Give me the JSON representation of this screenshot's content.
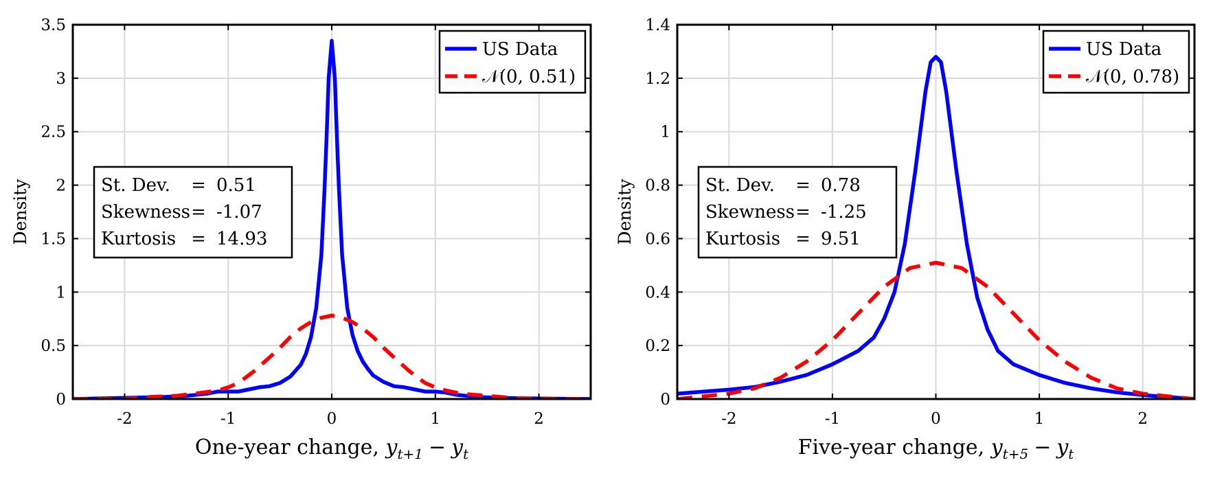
{
  "chart_data": [
    {
      "type": "line",
      "ylabel": "Density",
      "xlabel_text": "One-year change, ",
      "xlabel_math": {
        "base1": "y",
        "sub1": "t+1",
        "op": "−",
        "base2": "y",
        "sub2": "t"
      },
      "xlim": [
        -2.5,
        2.5
      ],
      "ylim": [
        0,
        3.5
      ],
      "xticks": [
        -2,
        -1,
        0,
        1,
        2
      ],
      "xtick_labels": [
        "-2",
        "-1",
        "0",
        "1",
        "2"
      ],
      "yticks": [
        0,
        0.5,
        1,
        1.5,
        2,
        2.5,
        3,
        3.5
      ],
      "ytick_labels": [
        "0",
        "0.5",
        "1",
        "1.5",
        "2",
        "2.5",
        "3",
        "3.5"
      ],
      "grid": true,
      "legend_position": "top-right",
      "stats_box": {
        "position": "middle-left",
        "lines": [
          {
            "label": "St. Dev.",
            "eq": "=",
            "value": "0.51"
          },
          {
            "label": "Skewness",
            "eq": "=",
            "value": "-1.07"
          },
          {
            "label": "Kurtosis",
            "eq": "=",
            "value": "14.93"
          }
        ]
      },
      "series": [
        {
          "name": "US Data",
          "color": "#0000ff",
          "style": "solid",
          "x": [
            -2.5,
            -2.0,
            -1.6,
            -1.4,
            -1.2,
            -1.1,
            -1.0,
            -0.9,
            -0.8,
            -0.7,
            -0.6,
            -0.5,
            -0.4,
            -0.3,
            -0.25,
            -0.2,
            -0.15,
            -0.1,
            -0.07,
            -0.05,
            -0.03,
            0.0,
            0.03,
            0.05,
            0.07,
            0.1,
            0.15,
            0.2,
            0.25,
            0.3,
            0.35,
            0.4,
            0.5,
            0.6,
            0.7,
            0.8,
            0.9,
            1.0,
            1.1,
            1.2,
            1.4,
            1.6,
            2.0,
            2.5
          ],
          "y": [
            0.0,
            0.01,
            0.02,
            0.03,
            0.05,
            0.07,
            0.07,
            0.07,
            0.09,
            0.11,
            0.12,
            0.15,
            0.21,
            0.32,
            0.42,
            0.58,
            0.85,
            1.35,
            1.95,
            2.45,
            3.0,
            3.35,
            3.0,
            2.45,
            1.95,
            1.35,
            0.85,
            0.6,
            0.45,
            0.35,
            0.28,
            0.22,
            0.16,
            0.12,
            0.11,
            0.09,
            0.07,
            0.07,
            0.06,
            0.04,
            0.02,
            0.01,
            0.005,
            0.0
          ]
        },
        {
          "name": "𝒩(0, 0.51)",
          "color": "#ff0000",
          "style": "dashed",
          "x": [
            -2.5,
            -2.25,
            -2.0,
            -1.75,
            -1.5,
            -1.25,
            -1.1,
            -1.0,
            -0.9,
            -0.75,
            -0.6,
            -0.5,
            -0.4,
            -0.3,
            -0.2,
            -0.1,
            0.0,
            0.1,
            0.2,
            0.3,
            0.4,
            0.5,
            0.6,
            0.75,
            0.9,
            1.0,
            1.1,
            1.25,
            1.5,
            1.75,
            2.0,
            2.25,
            2.5
          ],
          "y": [
            0.0,
            0.0,
            0.0,
            0.02,
            0.03,
            0.06,
            0.08,
            0.11,
            0.15,
            0.26,
            0.39,
            0.48,
            0.58,
            0.66,
            0.72,
            0.76,
            0.78,
            0.76,
            0.72,
            0.66,
            0.58,
            0.48,
            0.39,
            0.26,
            0.15,
            0.11,
            0.08,
            0.05,
            0.03,
            0.01,
            0.0,
            0.0,
            0.0
          ]
        }
      ]
    },
    {
      "type": "line",
      "ylabel": "Density",
      "xlabel_text": "Five-year change, ",
      "xlabel_math": {
        "base1": "y",
        "sub1": "t+5",
        "op": "−",
        "base2": "y",
        "sub2": "t"
      },
      "xlim": [
        -2.5,
        2.5
      ],
      "ylim": [
        0,
        1.4
      ],
      "xticks": [
        -2,
        -1,
        0,
        1,
        2
      ],
      "xtick_labels": [
        "-2",
        "-1",
        "0",
        "1",
        "2"
      ],
      "yticks": [
        0,
        0.2,
        0.4,
        0.6,
        0.8,
        1,
        1.2,
        1.4
      ],
      "ytick_labels": [
        "0",
        "0.2",
        "0.4",
        "0.6",
        "0.8",
        "1",
        "1.2",
        "1.4"
      ],
      "grid": true,
      "legend_position": "top-right",
      "stats_box": {
        "position": "middle-left",
        "lines": [
          {
            "label": "St. Dev.",
            "eq": "=",
            "value": "0.78"
          },
          {
            "label": "Skewness",
            "eq": "=",
            "value": "-1.25"
          },
          {
            "label": "Kurtosis",
            "eq": "=",
            "value": "9.51"
          }
        ]
      },
      "series": [
        {
          "name": "US Data",
          "color": "#0000ff",
          "style": "solid",
          "x": [
            -2.5,
            -2.0,
            -1.75,
            -1.5,
            -1.25,
            -1.0,
            -0.75,
            -0.6,
            -0.5,
            -0.4,
            -0.3,
            -0.2,
            -0.1,
            -0.05,
            0.0,
            0.05,
            0.1,
            0.2,
            0.3,
            0.4,
            0.5,
            0.6,
            0.75,
            1.0,
            1.25,
            1.5,
            1.75,
            2.0,
            2.5
          ],
          "y": [
            0.02,
            0.035,
            0.045,
            0.065,
            0.09,
            0.13,
            0.18,
            0.23,
            0.3,
            0.4,
            0.58,
            0.85,
            1.15,
            1.26,
            1.28,
            1.26,
            1.15,
            0.85,
            0.58,
            0.38,
            0.26,
            0.18,
            0.13,
            0.09,
            0.06,
            0.04,
            0.025,
            0.015,
            0.0
          ]
        },
        {
          "name": "𝒩(0, 0.78)",
          "color": "#ff0000",
          "style": "dashed",
          "x": [
            -2.5,
            -2.25,
            -2.0,
            -1.75,
            -1.5,
            -1.25,
            -1.0,
            -0.75,
            -0.5,
            -0.25,
            0.0,
            0.25,
            0.5,
            0.75,
            1.0,
            1.25,
            1.5,
            1.75,
            2.0,
            2.25,
            2.5
          ],
          "y": [
            0.0,
            0.01,
            0.02,
            0.04,
            0.08,
            0.14,
            0.22,
            0.32,
            0.42,
            0.49,
            0.51,
            0.49,
            0.42,
            0.32,
            0.22,
            0.14,
            0.08,
            0.04,
            0.02,
            0.01,
            0.0
          ]
        }
      ]
    }
  ]
}
